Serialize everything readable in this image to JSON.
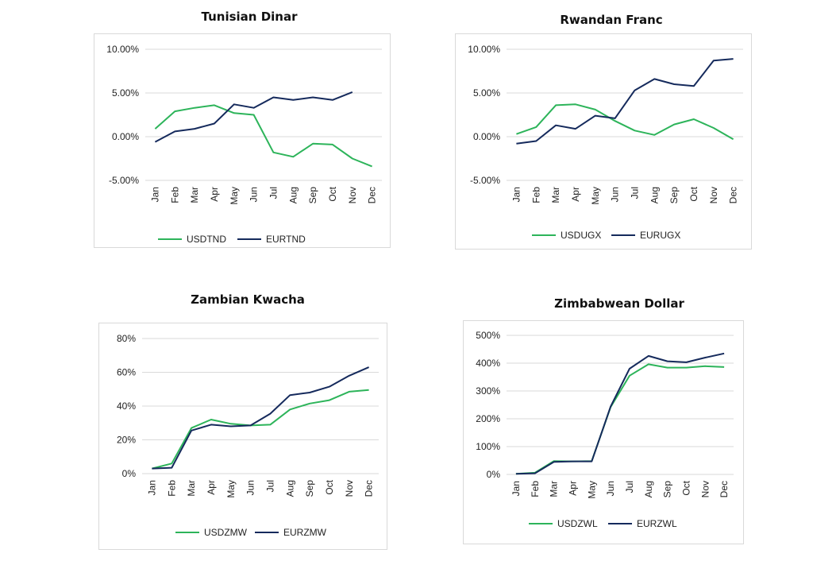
{
  "months": [
    "Jan",
    "Feb",
    "Mar",
    "Apr",
    "May",
    "Jun",
    "Jul",
    "Aug",
    "Sep",
    "Oct",
    "Nov",
    "Dec"
  ],
  "colors": {
    "usd": "#2db45a",
    "eur": "#152a5c",
    "grid": "#d9d9d9"
  },
  "chart_data": [
    {
      "type": "line",
      "title": "Tunisian Dinar",
      "categories": [
        "Jan",
        "Feb",
        "Mar",
        "Apr",
        "May",
        "Jun",
        "Jul",
        "Aug",
        "Sep",
        "Oct",
        "Nov",
        "Dec"
      ],
      "ylim": [
        -5,
        10
      ],
      "yticks": [
        -5,
        0,
        5,
        10
      ],
      "ytick_labels": [
        "-5.00%",
        "0.00%",
        "5.00%",
        "10.00%"
      ],
      "grid": true,
      "legend": "bottom",
      "series": [
        {
          "name": "USDTND",
          "color": "#2db45a",
          "values": [
            0.9,
            2.9,
            3.3,
            3.6,
            2.7,
            2.5,
            -1.8,
            -2.3,
            -0.8,
            -0.9,
            -2.5,
            -3.4
          ]
        },
        {
          "name": "EURTND",
          "color": "#152a5c",
          "values": [
            -0.6,
            0.6,
            0.9,
            1.5,
            3.7,
            3.3,
            4.5,
            4.2,
            4.5,
            4.2,
            5.1,
            null
          ]
        }
      ]
    },
    {
      "type": "line",
      "title": "Rwandan Franc",
      "categories": [
        "Jan",
        "Feb",
        "Mar",
        "Apr",
        "May",
        "Jun",
        "Jul",
        "Aug",
        "Sep",
        "Oct",
        "Nov",
        "Dec"
      ],
      "ylim": [
        -5,
        10
      ],
      "yticks": [
        -5,
        0,
        5,
        10
      ],
      "ytick_labels": [
        "-5.00%",
        "0.00%",
        "5.00%",
        "10.00%"
      ],
      "grid": true,
      "legend": "bottom",
      "series": [
        {
          "name": "USDUGX",
          "color": "#2db45a",
          "values": [
            0.3,
            1.1,
            3.6,
            3.7,
            3.1,
            1.8,
            0.7,
            0.2,
            1.4,
            2.0,
            1.0,
            -0.3
          ]
        },
        {
          "name": "EURUGX",
          "color": "#152a5c",
          "values": [
            -0.8,
            -0.5,
            1.3,
            0.9,
            2.4,
            2.1,
            5.3,
            6.6,
            6.0,
            5.8,
            8.7,
            8.9
          ]
        }
      ]
    },
    {
      "type": "line",
      "title": "Zambian Kwacha",
      "categories": [
        "Jan",
        "Feb",
        "Mar",
        "Apr",
        "May",
        "Jun",
        "Jul",
        "Aug",
        "Sep",
        "Oct",
        "Nov",
        "Dec"
      ],
      "ylim": [
        0,
        80
      ],
      "yticks": [
        0,
        20,
        40,
        60,
        80
      ],
      "ytick_labels": [
        "0%",
        "20%",
        "40%",
        "60%",
        "80%"
      ],
      "grid": true,
      "legend": "bottom",
      "series": [
        {
          "name": "USDZMW",
          "color": "#2db45a",
          "values": [
            3,
            6,
            27,
            32,
            29.5,
            28.5,
            29,
            38,
            41.5,
            43.5,
            48.5,
            49.5
          ]
        },
        {
          "name": "EURZMW",
          "color": "#152a5c",
          "values": [
            3,
            3.5,
            25.5,
            29,
            28,
            28.5,
            35.5,
            46.5,
            48,
            51.5,
            58,
            63
          ]
        }
      ]
    },
    {
      "type": "line",
      "title": "Zimbabwean Dollar",
      "categories": [
        "Jan",
        "Feb",
        "Mar",
        "Apr",
        "May",
        "Jun",
        "Jul",
        "Aug",
        "Sep",
        "Oct",
        "Nov",
        "Dec"
      ],
      "ylim": [
        0,
        500
      ],
      "yticks": [
        0,
        100,
        200,
        300,
        400,
        500
      ],
      "ytick_labels": [
        "0%",
        "100%",
        "200%",
        "300%",
        "400%",
        "500%"
      ],
      "grid": true,
      "legend": "bottom",
      "series": [
        {
          "name": "USDZWL",
          "color": "#2db45a",
          "values": [
            2,
            6,
            48,
            47,
            48,
            242,
            355,
            396,
            384,
            384,
            389,
            386
          ]
        },
        {
          "name": "EURZWL",
          "color": "#152a5c",
          "values": [
            2,
            4,
            45,
            47,
            47,
            244,
            380,
            426,
            407,
            403,
            420,
            435
          ]
        }
      ]
    }
  ]
}
